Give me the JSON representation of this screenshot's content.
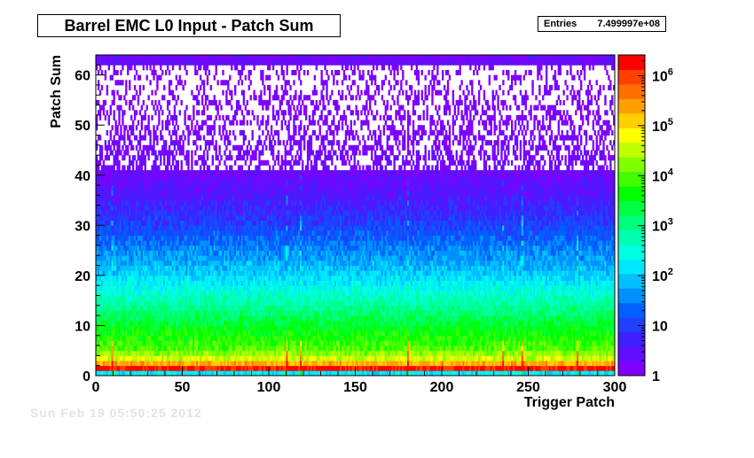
{
  "title": "Barrel EMC L0 Input - Patch Sum",
  "stats": {
    "label": "Entries",
    "value": "7.499997e+08"
  },
  "ghost_text": "Sun Feb 19 05:50:25 2012",
  "chart_data": {
    "type": "heatmap",
    "title": "Barrel EMC L0 Input - Patch Sum",
    "xlabel": "Trigger Patch",
    "ylabel": "Patch Sum",
    "xlim": [
      0,
      300
    ],
    "ylim": [
      0,
      64
    ],
    "x_ticks": [
      0,
      50,
      100,
      150,
      200,
      250,
      300
    ],
    "y_ticks": [
      0,
      10,
      20,
      30,
      40,
      50,
      60
    ],
    "z_scale": "log",
    "zlim": [
      1,
      2600000
    ],
    "z_tick_labels": [
      {
        "value": 1,
        "label": "1"
      },
      {
        "value": 10,
        "label": "10"
      },
      {
        "value": 100,
        "label": "10^2"
      },
      {
        "value": 1000,
        "label": "10^3"
      },
      {
        "value": 10000,
        "label": "10^4"
      },
      {
        "value": 100000,
        "label": "10^5"
      },
      {
        "value": 1000000,
        "label": "10^6"
      }
    ],
    "palette": [
      "#8000ff",
      "#6010ff",
      "#4020ff",
      "#2040ff",
      "#0060ff",
      "#0090ff",
      "#00c0ff",
      "#00e8ff",
      "#00ffe0",
      "#00ffb0",
      "#00ff80",
      "#00ff40",
      "#00ff00",
      "#40ff00",
      "#80ff00",
      "#c0ff00",
      "#ffff00",
      "#ffd000",
      "#ffa000",
      "#ff7000",
      "#ff4000",
      "#ff0000"
    ],
    "row_profile_log10": [
      {
        "patch_sum": 0,
        "log10_count": 2.2
      },
      {
        "patch_sum": 1,
        "log10_count": 6.2
      },
      {
        "patch_sum": 2,
        "log10_count": 5.3
      },
      {
        "patch_sum": 3,
        "log10_count": 4.6
      },
      {
        "patch_sum": 5,
        "log10_count": 4.0
      },
      {
        "patch_sum": 10,
        "log10_count": 3.4
      },
      {
        "patch_sum": 15,
        "log10_count": 2.7
      },
      {
        "patch_sum": 20,
        "log10_count": 2.0
      },
      {
        "patch_sum": 25,
        "log10_count": 1.5
      },
      {
        "patch_sum": 30,
        "log10_count": 1.0
      },
      {
        "patch_sum": 35,
        "log10_count": 0.6
      },
      {
        "patch_sum": 40,
        "log10_count": 0.3
      },
      {
        "patch_sum": 50,
        "log10_count": 0.05
      },
      {
        "patch_sum": 62,
        "log10_count": 0.0
      },
      {
        "patch_sum": 63,
        "log10_count": 0.3
      }
    ],
    "hot_patches": [
      9,
      110,
      118,
      180,
      235,
      246,
      278
    ],
    "grid": false,
    "legend": "colorbar-right"
  }
}
